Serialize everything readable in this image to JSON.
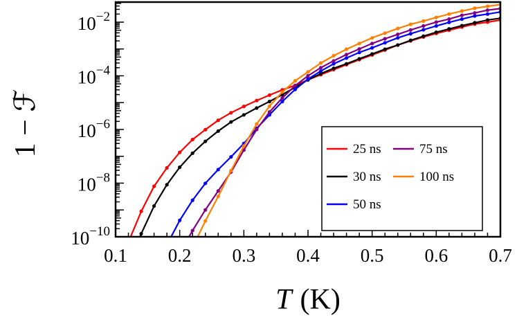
{
  "chart_data": {
    "type": "line",
    "xlabel": "T (K)",
    "xlabel_var": "T",
    "xlabel_unit": "(K)",
    "ylabel": "1 − ℱ",
    "xlim": [
      0.1,
      0.7
    ],
    "ylim": [
      1e-10,
      0.056
    ],
    "yscale": "log",
    "grid": false,
    "legend_position": "bottom-right",
    "x_ticks": [
      "0.1",
      "0.2",
      "0.3",
      "0.4",
      "0.5",
      "0.6",
      "0.7"
    ],
    "y_ticks": [
      {
        "base": "10",
        "exp": "−2",
        "value": 0.01
      },
      {
        "base": "10",
        "exp": "−4",
        "value": 0.0001
      },
      {
        "base": "10",
        "exp": "−6",
        "value": 1e-06
      },
      {
        "base": "10",
        "exp": "−8",
        "value": 1e-08
      },
      {
        "base": "10",
        "exp": "−10",
        "value": 1e-10
      }
    ],
    "series": [
      {
        "name": "25 ns",
        "color": "#ff0000",
        "x": [
          0.12,
          0.14,
          0.16,
          0.18,
          0.2,
          0.22,
          0.24,
          0.26,
          0.28,
          0.3,
          0.32,
          0.34,
          0.36,
          0.38,
          0.4,
          0.42,
          0.44,
          0.46,
          0.48,
          0.5,
          0.52,
          0.54,
          0.56,
          0.58,
          0.6,
          0.62,
          0.64,
          0.66,
          0.68,
          0.7
        ],
        "y": [
          6.3e-11,
          8.9e-10,
          7.6e-09,
          3.7e-08,
          1.4e-07,
          4.2e-07,
          9.8e-07,
          2.2e-06,
          4.2e-06,
          7.2e-06,
          1.2e-05,
          1.9e-05,
          3e-05,
          4.4e-05,
          7.1e-05,
          0.00011,
          0.00017,
          0.00026,
          0.0004,
          0.0006,
          0.00091,
          0.0014,
          0.002,
          0.0028,
          0.0038,
          0.005,
          0.0066,
          0.0085,
          0.01,
          0.012
        ]
      },
      {
        "name": "30 ns",
        "color": "#000000",
        "x": [
          0.12,
          0.14,
          0.16,
          0.18,
          0.2,
          0.22,
          0.24,
          0.26,
          0.28,
          0.3,
          0.32,
          0.34,
          0.36,
          0.38,
          0.4,
          0.42,
          0.44,
          0.46,
          0.48,
          0.5,
          0.52,
          0.54,
          0.56,
          0.58,
          0.6,
          0.62,
          0.64,
          0.66,
          0.68,
          0.7
        ],
        "y": [
          1e-11,
          1.3e-10,
          1.4e-09,
          8.7e-09,
          3.9e-08,
          1.3e-07,
          3.6e-07,
          8.7e-07,
          1.9e-06,
          3.5e-06,
          6.3e-06,
          1.1e-05,
          2e-05,
          3.7e-05,
          7.1e-05,
          0.00012,
          0.00019,
          0.00028,
          0.00043,
          0.00065,
          0.00098,
          0.0014,
          0.0021,
          0.003,
          0.0042,
          0.0056,
          0.0074,
          0.0095,
          0.012,
          0.014
        ]
      },
      {
        "name": "50 ns",
        "color": "#0000ff",
        "x": [
          0.18,
          0.2,
          0.22,
          0.24,
          0.26,
          0.28,
          0.3,
          0.32,
          0.34,
          0.36,
          0.38,
          0.4,
          0.42,
          0.44,
          0.46,
          0.48,
          0.5,
          0.52,
          0.54,
          0.56,
          0.58,
          0.6,
          0.62,
          0.64,
          0.66,
          0.68,
          0.7
        ],
        "y": [
          5e-11,
          4.1e-10,
          2.3e-09,
          9.8e-09,
          3.2e-08,
          9.5e-08,
          3e-07,
          1.1e-06,
          3.5e-06,
          1.1e-05,
          3.1e-05,
          7.6e-05,
          0.00015,
          0.00028,
          0.00046,
          0.00074,
          0.0011,
          0.0017,
          0.0026,
          0.0037,
          0.0052,
          0.0072,
          0.0098,
          0.013,
          0.017,
          0.02,
          0.024
        ]
      },
      {
        "name": "75 ns",
        "color": "#800080",
        "x": [
          0.2,
          0.22,
          0.24,
          0.26,
          0.28,
          0.3,
          0.32,
          0.34,
          0.36,
          0.38,
          0.4,
          0.42,
          0.44,
          0.46,
          0.48,
          0.5,
          0.52,
          0.54,
          0.56,
          0.58,
          0.6,
          0.62,
          0.64,
          0.66,
          0.68,
          0.7
        ],
        "y": [
          2.5e-11,
          1.7e-10,
          1e-09,
          5.1e-09,
          2.6e-08,
          1.7e-07,
          1e-06,
          4.5e-06,
          1.5e-05,
          4.3e-05,
          0.0001,
          0.0002,
          0.00036,
          0.00062,
          0.001,
          0.0016,
          0.0024,
          0.0035,
          0.0051,
          0.0072,
          0.01,
          0.013,
          0.018,
          0.022,
          0.028,
          0.032
        ]
      },
      {
        "name": "100 ns",
        "color": "#ff8000",
        "x": [
          0.22,
          0.24,
          0.26,
          0.28,
          0.3,
          0.32,
          0.34,
          0.36,
          0.38,
          0.4,
          0.42,
          0.44,
          0.46,
          0.48,
          0.5,
          0.52,
          0.54,
          0.56,
          0.58,
          0.6,
          0.62,
          0.64,
          0.66,
          0.68,
          0.7
        ],
        "y": [
          4e-11,
          3.9e-10,
          3.2e-09,
          2.9e-08,
          2.4e-07,
          1.6e-06,
          7.4e-06,
          2.5e-05,
          6.5e-05,
          0.00014,
          0.0003,
          0.00056,
          0.00098,
          0.0016,
          0.0026,
          0.0039,
          0.0058,
          0.0083,
          0.011,
          0.015,
          0.02,
          0.026,
          0.033,
          0.039,
          0.045
        ]
      }
    ]
  }
}
